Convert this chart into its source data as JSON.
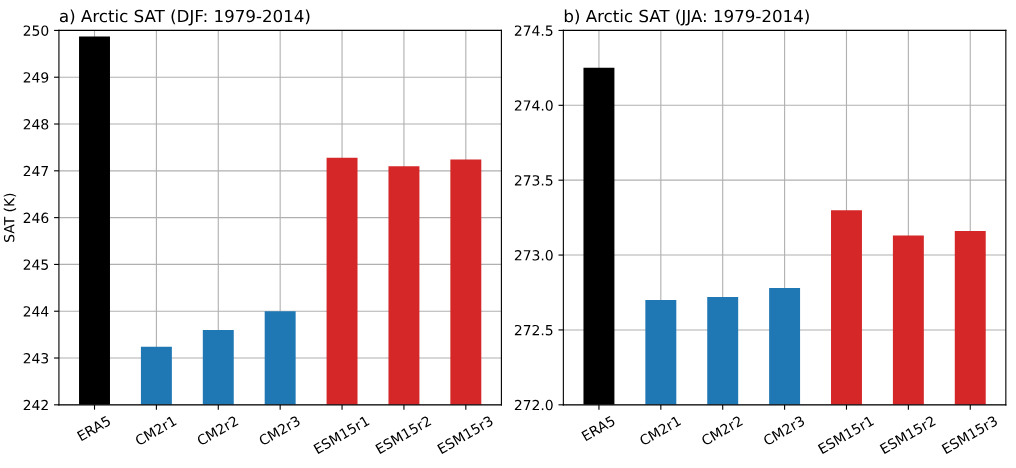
{
  "chart_data": [
    {
      "type": "bar",
      "title": "a) Arctic SAT (DJF: 1979-2014)",
      "ylabel": "SAT (K)",
      "categories": [
        "ERA5",
        "CM2r1",
        "CM2r2",
        "CM2r3",
        "ESM15r1",
        "ESM15r2",
        "ESM15r3"
      ],
      "values": [
        249.87,
        243.24,
        243.6,
        244.0,
        247.28,
        247.1,
        247.24
      ],
      "colors": [
        "#000000",
        "#1f77b4",
        "#1f77b4",
        "#1f77b4",
        "#d62728",
        "#d62728",
        "#d62728"
      ],
      "ylim": [
        242,
        250
      ],
      "yticks": [
        242,
        243,
        244,
        245,
        246,
        247,
        248,
        249,
        250
      ],
      "grid": true
    },
    {
      "type": "bar",
      "title": "b) Arctic SAT (JJA: 1979-2014)",
      "categories": [
        "ERA5",
        "CM2r1",
        "CM2r2",
        "CM2r3",
        "ESM15r1",
        "ESM15r2",
        "ESM15r3"
      ],
      "values": [
        274.25,
        272.7,
        272.72,
        272.78,
        273.3,
        273.13,
        273.16
      ],
      "colors": [
        "#000000",
        "#1f77b4",
        "#1f77b4",
        "#1f77b4",
        "#d62728",
        "#d62728",
        "#d62728"
      ],
      "ylim": [
        272.0,
        274.5
      ],
      "yticks": [
        {
          "value": 272.0,
          "label": "272.0"
        },
        {
          "value": 272.5,
          "label": "272.5"
        },
        {
          "value": 273.0,
          "label": "273.0"
        },
        {
          "value": 273.5,
          "label": "273.5"
        },
        {
          "value": 274.0,
          "label": "274.0"
        },
        {
          "value": 274.5,
          "label": "274.5"
        }
      ],
      "grid": true
    }
  ]
}
